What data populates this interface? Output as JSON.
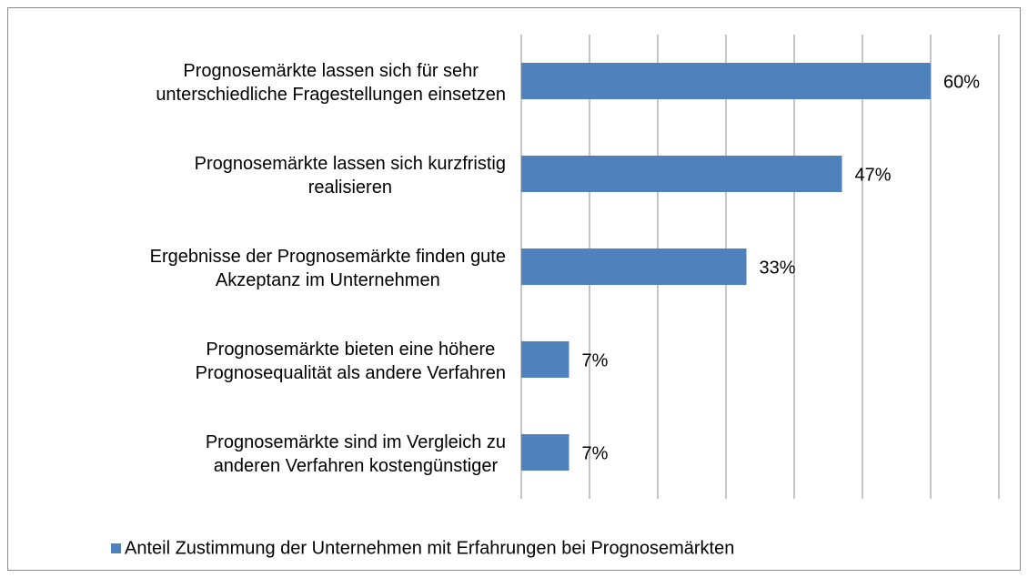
{
  "chart_data": {
    "type": "barh",
    "categories": [
      "Prognosemärkte lassen sich für sehr\nunterschiedliche Fragestellungen einsetzen",
      "Prognosemärkte lassen sich kurzfristig\nrealisieren",
      "Ergebnisse der Prognosemärkte finden gute\nAkzeptanz im Unternehmen",
      "Prognosemärkte bieten eine höhere\nPrognosequalität als andere Verfahren",
      "Prognosemärkte sind im Vergleich zu\nanderen Verfahren kostengünstiger"
    ],
    "series": [
      {
        "name": "Anteil Zustimmung der Unternehmen mit Erfahrungen bei Prognosemärkten",
        "color": "#4f81bd",
        "values": [
          60,
          47,
          33,
          7,
          7
        ],
        "value_labels": [
          "60%",
          "47%",
          "33%",
          "7%",
          "7%"
        ]
      }
    ],
    "xlim": [
      0,
      70
    ],
    "xticks": [
      0,
      10,
      20,
      30,
      40,
      50,
      60,
      70
    ],
    "grid": true,
    "legend": "bottom"
  }
}
